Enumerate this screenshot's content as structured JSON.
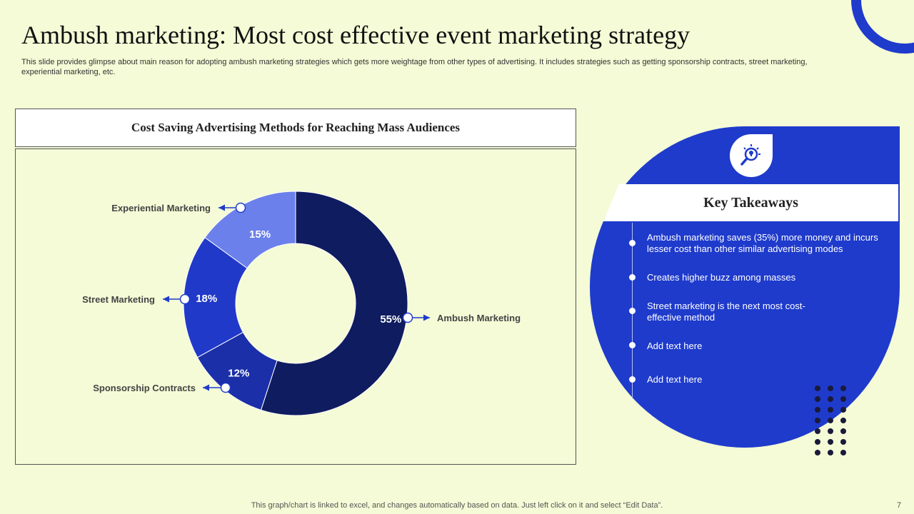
{
  "slide": {
    "title": "Ambush marketing: Most cost effective event marketing strategy",
    "subtitle": "This slide provides glimpse about main reason for adopting ambush marketing strategies which gets more weightage from other types of advertising. It includes strategies such as getting sponsorship contracts, street marketing, experiential marketing, etc.",
    "footer": "This graph/chart is linked to excel,  and changes automatically based on data. Just left click on it and select “Edit Data”.",
    "page_number": "7"
  },
  "chart_data": {
    "type": "pie",
    "title": "Cost Saving Advertising Methods for Reaching Mass Audiences",
    "donut": true,
    "slices": [
      {
        "label": "Ambush  Marketing",
        "value": 55,
        "value_label": "55%",
        "color": "#0f1c60"
      },
      {
        "label": "Sponsorship  Contracts",
        "value": 12,
        "value_label": "12%",
        "color": "#1a2fa8"
      },
      {
        "label": "Street Marketing",
        "value": 18,
        "value_label": "18%",
        "color": "#2039c8"
      },
      {
        "label": "Experiential Marketing",
        "value": 15,
        "value_label": "15%",
        "color": "#6b80ea"
      }
    ]
  },
  "takeaways": {
    "header": "Key Takeaways",
    "icon": "lightbulb-search-icon",
    "items": [
      "Ambush marketing saves (35%) more money and incurs lesser cost than other similar advertising modes",
      "Creates higher buzz among masses",
      "Street marketing is the next most cost-effective method",
      "Add text here",
      "Add text here"
    ]
  },
  "colors": {
    "background": "#f4fbd6",
    "accent": "#1f3bcc",
    "dark_navy": "#0f1c60"
  }
}
